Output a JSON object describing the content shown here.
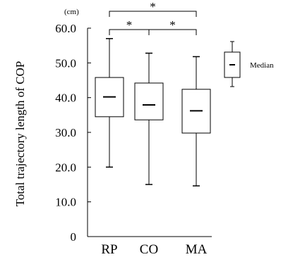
{
  "chart_data": {
    "type": "boxplot",
    "unit_label": "(cm)",
    "ylabel": "Total trajectory length of COP",
    "xlabel": "",
    "ylim": [
      0,
      60
    ],
    "yticks": [
      "0",
      "10.0",
      "20.0",
      "30.0",
      "40.0",
      "50.0",
      "60.0"
    ],
    "ytick_values": [
      0,
      10,
      20,
      30,
      40,
      50,
      60
    ],
    "categories": [
      "RP",
      "CO",
      "MA"
    ],
    "boxes": [
      {
        "category": "RP",
        "min": 20.0,
        "q1": 34.5,
        "median": 40.2,
        "q3": 45.8,
        "max": 57.0
      },
      {
        "category": "CO",
        "min": 15.0,
        "q1": 33.6,
        "median": 37.9,
        "q3": 44.2,
        "max": 52.8
      },
      {
        "category": "MA",
        "min": 14.6,
        "q1": 29.8,
        "median": 36.2,
        "q3": 42.4,
        "max": 51.8
      }
    ],
    "significance": [
      {
        "from": "RP",
        "to": "MA",
        "label": "*"
      },
      {
        "from": "RP",
        "to": "CO",
        "label": "*"
      },
      {
        "from": "CO",
        "to": "MA",
        "label": "*"
      }
    ],
    "legend": {
      "label": "Median",
      "placement": "right"
    }
  }
}
